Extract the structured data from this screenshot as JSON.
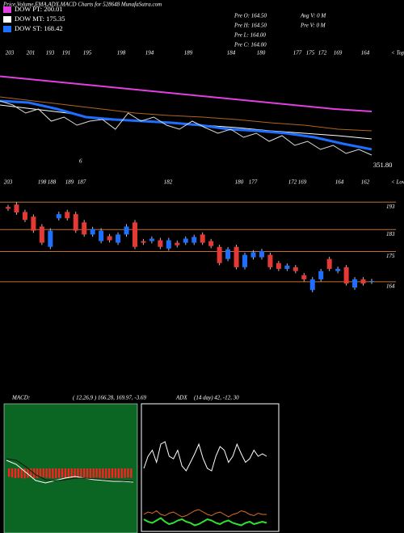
{
  "header": {
    "title": "Price,Volume,EMA,ADX,MACD Charts for 528648 MunafaSutra.com",
    "pre": [
      "Pre  O: 164.50",
      "Pre  H: 164.50",
      "Pre  L: 164.00",
      "Pre  C: 164.00"
    ],
    "vol": [
      "Avg V: 0  M",
      "Pre V: 0  M"
    ]
  },
  "chart_data": [
    {
      "type": "line",
      "ylim": [
        152,
        252
      ],
      "tops_labels": [
        "203",
        "201",
        "193",
        "191",
        "195",
        "198",
        "194",
        "189",
        "184",
        "180",
        "177",
        "175",
        "172",
        "169",
        "164"
      ],
      "tops_caption": "< Tops",
      "lows_labels": [
        "203",
        "198",
        "188",
        "189",
        "187",
        "182",
        "180",
        "177",
        "172",
        "169",
        "164",
        "162"
      ],
      "lows_caption": "< Lows",
      "annotations": [
        "351.80",
        "6"
      ],
      "series": [
        {
          "color": "#b5651d",
          "values": [
            212,
            208.7,
            205.3,
            202,
            198.7,
            196.7,
            195.3,
            193.3,
            190.7,
            188.7,
            185.3,
            184
          ]
        },
        {
          "name": "DOW PT: 200.01",
          "color": "#e040e0",
          "values": [
            229,
            226,
            223,
            220,
            217,
            214,
            211,
            208,
            205,
            202,
            200.01
          ]
        },
        {
          "name": "DOW MT: 175.35",
          "color": "#ffffff",
          "values": [
            205.3,
            202,
            198.7,
            193.3,
            192,
            190.7,
            188.7,
            186.7,
            184,
            182,
            180,
            177.3
          ]
        },
        {
          "name": "DOW ST: 168.42",
          "color": "#1e6fff",
          "values": [
            208.7,
            207.3,
            202,
            195.3,
            193.3,
            192,
            190.7,
            188.7,
            185.3,
            184,
            182,
            178.7,
            173.3,
            168.7
          ]
        },
        {
          "color": "#dddddd",
          "values": [
            208.7,
            205.3,
            198.7,
            202,
            192,
            195.3,
            188.7,
            192,
            193.3,
            185.3,
            198.7,
            192,
            195.3,
            188.7,
            185.3,
            192,
            186.7,
            182,
            185.3,
            178.7,
            182,
            175.3,
            180,
            172,
            175.3,
            168.7,
            172,
            165.3,
            168.7,
            164
          ]
        }
      ]
    },
    {
      "type": "candlestick",
      "ylim": [
        149,
        196
      ],
      "yticks": [
        193,
        183,
        175,
        164
      ],
      "grid": true,
      "grid_color": "#c0702a",
      "up_color": "#1e6fff",
      "down_color": "#e53935",
      "open": [
        191.2,
        192.1,
        189.4,
        187.7,
        184.1,
        176.7,
        187.1,
        189.4,
        188.6,
        185.6,
        181.2,
        178.8,
        180.6,
        178.2,
        181.2,
        185.6,
        178.8,
        178.8,
        179.1,
        176.1,
        178.2,
        178.2,
        178.2,
        181.2,
        178.8,
        176.7,
        172.3,
        176.7,
        169.3,
        172.9,
        172.9,
        173.8,
        170.8,
        168.7,
        169.3,
        166.4,
        161.0,
        164.9,
        172.3,
        167.9,
        169.3,
        161.9,
        164.9,
        164.0
      ],
      "close": [
        190.6,
        189.2,
        186.5,
        182.6,
        178.2,
        182.6,
        188.6,
        187.1,
        182.6,
        181.2,
        183.2,
        182.6,
        179.1,
        181.2,
        184.1,
        176.7,
        178.2,
        179.7,
        176.7,
        179.1,
        177.3,
        179.7,
        180.3,
        178.2,
        177.0,
        170.8,
        175.8,
        169.3,
        173.8,
        174.7,
        175.2,
        169.3,
        168.7,
        169.9,
        167.9,
        164.9,
        164.9,
        167.9,
        168.7,
        168.7,
        163.4,
        164.9,
        163.4,
        164.3
      ],
      "high": [
        192.0,
        193.0,
        190.2,
        188.5,
        185.0,
        183.5,
        189.5,
        190.2,
        189.5,
        186.5,
        184.0,
        183.5,
        181.4,
        182.0,
        185.0,
        186.5,
        179.6,
        180.5,
        180.0,
        180.0,
        179.0,
        180.5,
        181.1,
        182.0,
        179.6,
        177.5,
        176.6,
        177.5,
        174.6,
        175.5,
        176.0,
        174.6,
        171.6,
        170.7,
        170.1,
        167.2,
        165.7,
        168.7,
        173.1,
        169.5,
        170.1,
        165.7,
        165.7,
        165.1
      ],
      "low": [
        189.8,
        188.4,
        185.7,
        181.8,
        177.4,
        175.9,
        186.3,
        186.3,
        181.8,
        180.4,
        180.4,
        178.0,
        178.3,
        177.4,
        180.4,
        175.9,
        177.4,
        178.0,
        175.9,
        175.3,
        176.5,
        177.4,
        177.4,
        177.4,
        176.2,
        170.0,
        171.5,
        168.5,
        168.5,
        172.1,
        172.1,
        168.5,
        167.9,
        167.9,
        167.1,
        164.1,
        160.2,
        164.1,
        167.9,
        167.1,
        162.6,
        161.1,
        162.6,
        163.2
      ]
    },
    {
      "type": "macd",
      "title": "MACD:",
      "subtitle": "( 12,26,9 ) 166.28, 169.97, -3.69",
      "background": "#0b6623",
      "ylim": [
        -20,
        20
      ],
      "histogram_color": "#ff2020",
      "histogram": [
        -2.6,
        -2.8,
        -3,
        -2.9,
        -3,
        -3.1,
        -2.9,
        -2.8,
        -3,
        -3,
        -2.9,
        -2.8,
        -2.9,
        -3,
        -3.1,
        -3,
        -2.9,
        -2.8,
        -2.9,
        -3,
        -3,
        -3.1,
        -2.9,
        -2.8,
        -2.9,
        -3,
        -3,
        -2.9,
        -2.8,
        -2.9,
        -3,
        -3.1,
        -3,
        -2.9,
        -2.9,
        -3,
        -3,
        -2.9,
        -2.8,
        -2.9
      ],
      "series": [
        {
          "color": "#ffffff",
          "values": [
            2.5,
            1.25,
            -1.25,
            -3.75,
            -4.5,
            -3.75,
            -3,
            -2.5,
            -3,
            -3.5,
            -3.75,
            -4,
            -4,
            -4.25
          ]
        },
        {
          "color": "#111111",
          "values": [
            3,
            2.5,
            0.5,
            -2,
            -3.5,
            -3.8,
            -3.5,
            -3,
            -3,
            -3.2,
            -3.5,
            -3.7,
            -3.8,
            -4
          ]
        }
      ]
    },
    {
      "type": "adx",
      "title": "ADX",
      "subtitle": "(14 day) 42, -12, 30",
      "ylim": [
        0,
        100
      ],
      "series": [
        {
          "color": "#ffffff",
          "values": [
            50,
            60,
            65,
            55,
            70,
            72,
            60,
            58,
            65,
            52,
            48,
            55,
            62,
            70,
            58,
            50,
            48,
            60,
            68,
            65,
            55,
            60,
            70,
            62,
            55,
            58,
            65,
            60,
            62,
            60
          ]
        },
        {
          "color": "#e07020",
          "values": [
            12,
            14,
            13,
            15,
            12,
            11,
            13,
            14,
            12,
            10,
            11,
            13,
            15,
            16,
            14,
            12,
            11,
            13,
            14,
            12,
            10,
            12,
            13,
            15,
            14,
            12,
            11,
            13,
            12,
            12
          ]
        },
        {
          "color": "#30e030",
          "values": [
            8,
            6,
            5,
            7,
            9,
            6,
            4,
            5,
            7,
            8,
            6,
            5,
            3,
            4,
            6,
            8,
            7,
            5,
            4,
            6,
            7,
            5,
            4,
            3,
            5,
            6,
            4,
            5,
            6,
            5
          ]
        }
      ]
    }
  ]
}
